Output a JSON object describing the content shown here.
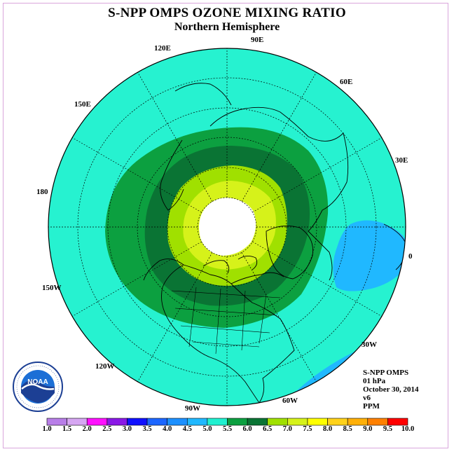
{
  "title": "S-NPP OMPS OZONE MIXING RATIO",
  "subtitle": "Northern Hemisphere",
  "longitude_labels": [
    "90E",
    "60E",
    "30E",
    "0",
    "30W",
    "60W",
    "90W",
    "120W",
    "150W",
    "180",
    "150E",
    "120E"
  ],
  "info": {
    "instrument": "S-NPP OMPS",
    "pressure": "01 hPa",
    "date": "October 30, 2014",
    "version": "v6",
    "units": "PPM"
  },
  "logo_text": "NOAA",
  "colorbar": {
    "labels": [
      "1.0",
      "1.5",
      "2.0",
      "2.5",
      "3.0",
      "3.5",
      "4.0",
      "4.5",
      "5.0",
      "5.5",
      "6.0",
      "6.5",
      "7.0",
      "7.5",
      "8.0",
      "8.5",
      "9.0",
      "9.5",
      "10.0"
    ],
    "colors": [
      "#b87ee8",
      "#d6a6f2",
      "#ff10ff",
      "#8a18e6",
      "#1010ff",
      "#1c66ff",
      "#1c90ff",
      "#20b8ff",
      "#20f0d0",
      "#0ca040",
      "#0a7434",
      "#a0e000",
      "#d6f21a",
      "#ffff00",
      "#ffd21a",
      "#ffb008",
      "#ff8000",
      "#ff0000",
      "#8a5a3a"
    ]
  },
  "colors": {
    "background_field": "#26f2d0",
    "low_region": "#20b8ff",
    "band_5_5": "#0ca040",
    "band_6_0": "#0a7434",
    "band_6_5": "#a0e000",
    "band_7_0": "#d6f21a",
    "polar_night": "#ffffff"
  }
}
